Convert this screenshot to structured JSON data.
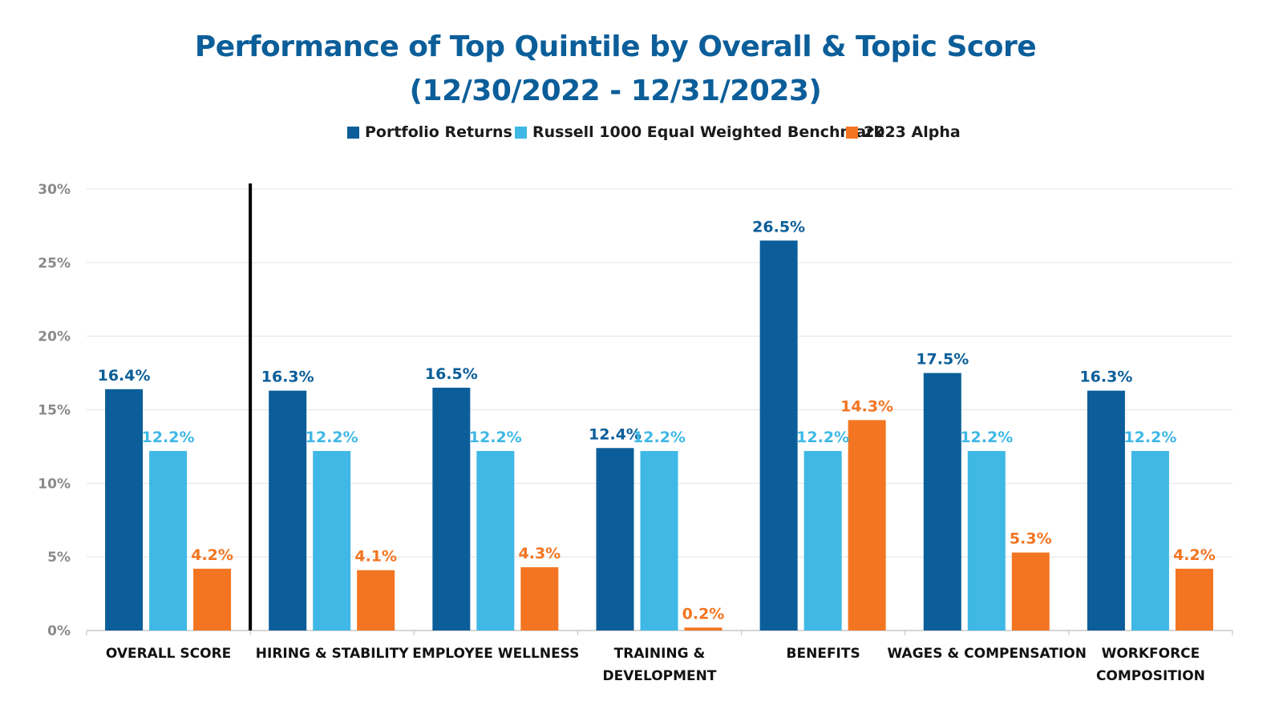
{
  "chart_data": {
    "type": "bar",
    "title": "Performance of Top Quintile by Overall & Topic Score",
    "subtitle": "(12/30/2022 - 12/31/2023)",
    "categories": [
      [
        "OVERALL SCORE"
      ],
      [
        "HIRING & STABILITY"
      ],
      [
        "EMPLOYEE WELLNESS"
      ],
      [
        "TRAINING &",
        "DEVELOPMENT"
      ],
      [
        "BENEFITS"
      ],
      [
        "WAGES & COMPENSATION"
      ],
      [
        "WORKFORCE",
        "COMPOSITION"
      ]
    ],
    "series": [
      {
        "name": "Portfolio Returns",
        "color": "#0b5e99",
        "values": [
          16.4,
          16.3,
          16.5,
          12.4,
          26.5,
          17.5,
          16.3
        ],
        "labels": [
          "16.4%",
          "16.3%",
          "16.5%",
          "12.4%",
          "26.5%",
          "17.5%",
          "16.3%"
        ]
      },
      {
        "name": "Russell 1000 Equal Weighted Benchmark",
        "color": "#3fb8e5",
        "values": [
          12.2,
          12.2,
          12.2,
          12.2,
          12.2,
          12.2,
          12.2
        ],
        "labels": [
          "12.2%",
          "12.2%",
          "12.2%",
          "12.2%",
          "12.2%",
          "12.2%",
          "12.2%"
        ]
      },
      {
        "name": "2023 Alpha",
        "color": "#f37521",
        "values": [
          4.2,
          4.1,
          4.3,
          0.2,
          14.3,
          5.3,
          4.2
        ],
        "labels": [
          "4.2%",
          "4.1%",
          "4.3%",
          "0.2%",
          "14.3%",
          "5.3%",
          "4.2%"
        ]
      }
    ],
    "yticks": [
      "0%",
      "5%",
      "10%",
      "15%",
      "20%",
      "25%",
      "30%"
    ],
    "ylim": [
      0,
      30
    ],
    "ystep": 5,
    "xlabel": "",
    "ylabel": "",
    "grid": true,
    "legend_position": "top",
    "separator_after_category": 0,
    "colors": {
      "title": "#0b5e99",
      "grid": "#e3e3e3",
      "axis": "#c8c8c8",
      "tick": "#8a8a8a",
      "separator": "#000000"
    }
  }
}
